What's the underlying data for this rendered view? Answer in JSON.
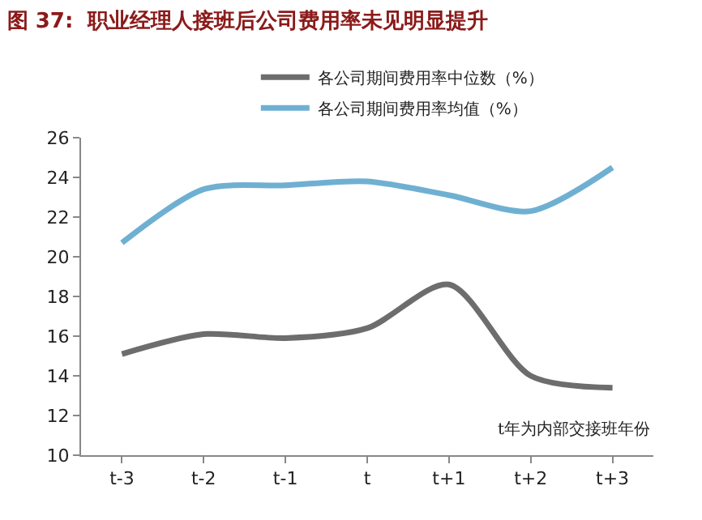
{
  "chart_data": {
    "type": "line",
    "title": "图 37:  职业经理人接班后公司费用率未见明显提升",
    "categories": [
      "t-3",
      "t-2",
      "t-1",
      "t",
      "t+1",
      "t+2",
      "t+3"
    ],
    "series": [
      {
        "name": "各公司期间费用率中位数（%）",
        "color": "#6d6d6d",
        "values": [
          15.1,
          16.1,
          15.9,
          16.4,
          18.6,
          14.0,
          13.4
        ]
      },
      {
        "name": "各公司期间费用率均值（%）",
        "color": "#6fb0d2",
        "values": [
          20.7,
          23.4,
          23.6,
          23.8,
          23.1,
          22.3,
          24.5
        ]
      }
    ],
    "ylim": [
      10,
      26
    ],
    "yticks": [
      10,
      12,
      14,
      16,
      18,
      20,
      22,
      24,
      26
    ],
    "legend": "top",
    "marker": "none",
    "line_style": "solid",
    "annotations": [
      "t年为内部交接班年份"
    ]
  }
}
